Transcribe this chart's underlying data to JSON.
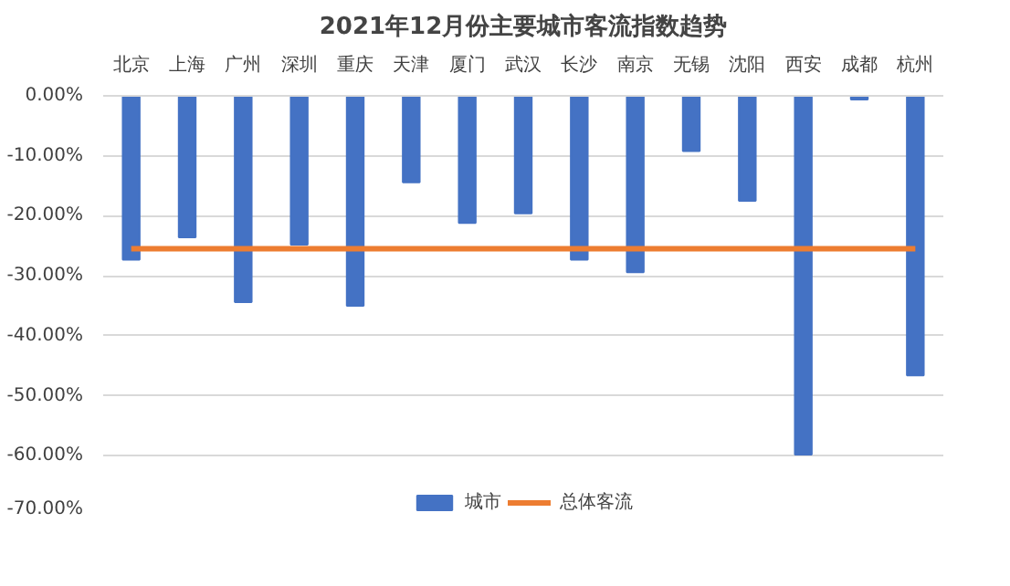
{
  "chart_data": {
    "type": "bar",
    "title": "2021年12月份主要城市客流指数趋势",
    "categories": [
      "北京",
      "上海",
      "广州",
      "深圳",
      "重庆",
      "天津",
      "厦门",
      "武汉",
      "长沙",
      "南京",
      "无锡",
      "沈阳",
      "西安",
      "成都",
      "杭州"
    ],
    "series": [
      {
        "name": "城市",
        "color": "#4472c4",
        "values": [
          -27.3,
          -23.6,
          -34.4,
          -24.8,
          -35.0,
          -14.4,
          -21.2,
          -19.6,
          -27.3,
          -29.4,
          -9.2,
          -17.5,
          -59.8,
          -0.6,
          -46.6
        ]
      },
      {
        "name": "总体客流",
        "type": "line",
        "color": "#ed7d31",
        "values": [
          -25.5,
          -25.5,
          -25.5,
          -25.5,
          -25.5,
          -25.5,
          -25.5,
          -25.5,
          -25.5,
          -25.5,
          -25.5,
          -25.5,
          -25.5,
          -25.5,
          -25.5
        ]
      }
    ],
    "ylim": [
      -70,
      0
    ],
    "yticks": [
      {
        "value": 0,
        "label": "0.00%"
      },
      {
        "value": -10,
        "label": "-10.00%"
      },
      {
        "value": -20,
        "label": "-20.00%"
      },
      {
        "value": -30,
        "label": "-30.00%"
      },
      {
        "value": -40,
        "label": "-40.00%"
      },
      {
        "value": -50,
        "label": "-50.00%"
      },
      {
        "value": -60,
        "label": "-60.00%"
      },
      {
        "value": -70,
        "label": "-70.00%"
      }
    ],
    "grid": "y",
    "legend": "bottom"
  }
}
